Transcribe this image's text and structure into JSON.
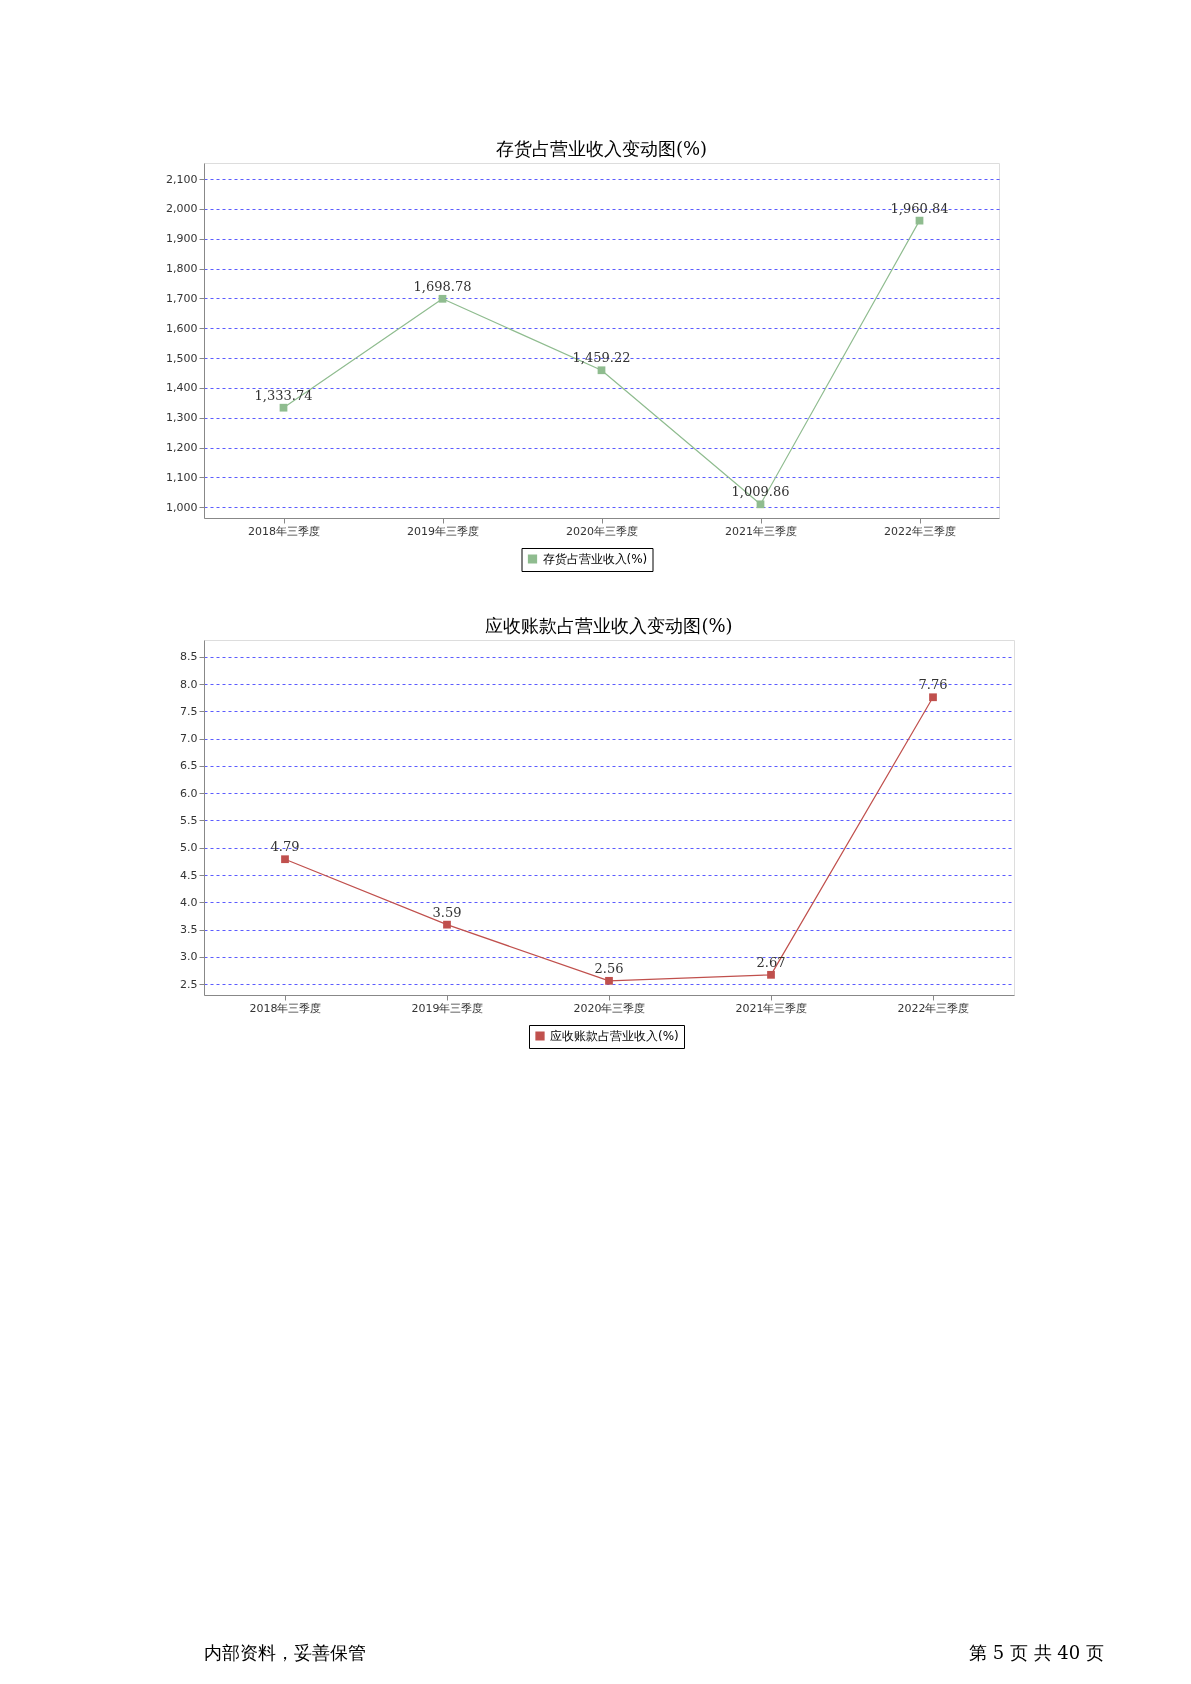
{
  "chart_data": [
    {
      "type": "line",
      "title": "存货占营业收入变动图(%)",
      "categories": [
        "2018年三季度",
        "2019年三季度",
        "2020年三季度",
        "2021年三季度",
        "2022年三季度"
      ],
      "series": [
        {
          "name": "存货占营业收入(%)",
          "color": "#8fbc8f",
          "values": [
            1333.74,
            1698.78,
            1459.22,
            1009.86,
            1960.84
          ],
          "value_labels": [
            "1,333.74",
            "1,698.78",
            "1,459.22",
            "1,009.86",
            "1,960.84"
          ]
        }
      ],
      "ylim": [
        964,
        2154
      ],
      "yticks": [
        {
          "value": 1000,
          "label": "1,000"
        },
        {
          "value": 1100,
          "label": "1,100"
        },
        {
          "value": 1200,
          "label": "1,200"
        },
        {
          "value": 1300,
          "label": "1,300"
        },
        {
          "value": 1400,
          "label": "1,400"
        },
        {
          "value": 1500,
          "label": "1,500"
        },
        {
          "value": 1600,
          "label": "1,600"
        },
        {
          "value": 1700,
          "label": "1,700"
        },
        {
          "value": 1800,
          "label": "1,800"
        },
        {
          "value": 1900,
          "label": "1,900"
        },
        {
          "value": 2000,
          "label": "2,000"
        },
        {
          "value": 2100,
          "label": "2,100"
        }
      ],
      "grid": "y",
      "legend": "bottom",
      "marker": "square",
      "line_style": "solid"
    },
    {
      "type": "line",
      "title": "应收账款占营业收入变动图(%)",
      "categories": [
        "2018年三季度",
        "2019年三季度",
        "2020年三季度",
        "2021年三季度",
        "2022年三季度"
      ],
      "series": [
        {
          "name": "应收账款占营业收入(%)",
          "color": "#c0504d",
          "values": [
            4.79,
            3.59,
            2.56,
            2.67,
            7.76
          ],
          "value_labels": [
            "4.79",
            "3.59",
            "2.56",
            "2.67",
            "7.76"
          ]
        }
      ],
      "ylim": [
        2.3,
        8.81
      ],
      "yticks": [
        {
          "value": 2.5,
          "label": "2.5"
        },
        {
          "value": 3,
          "label": "3.0"
        },
        {
          "value": 3.5,
          "label": "3.5"
        },
        {
          "value": 4,
          "label": "4.0"
        },
        {
          "value": 4.5,
          "label": "4.5"
        },
        {
          "value": 5,
          "label": "5.0"
        },
        {
          "value": 5.5,
          "label": "5.5"
        },
        {
          "value": 6,
          "label": "6.0"
        },
        {
          "value": 6.5,
          "label": "6.5"
        },
        {
          "value": 7,
          "label": "7.0"
        },
        {
          "value": 7.5,
          "label": "7.5"
        },
        {
          "value": 8,
          "label": "8.0"
        },
        {
          "value": 8.5,
          "label": "8.5"
        }
      ],
      "grid": "y",
      "legend": "bottom",
      "marker": "square",
      "line_style": "solid",
      "annotations": [
        "内部资料，妥善保管",
        "第 5 页  共 40 页"
      ]
    }
  ]
}
